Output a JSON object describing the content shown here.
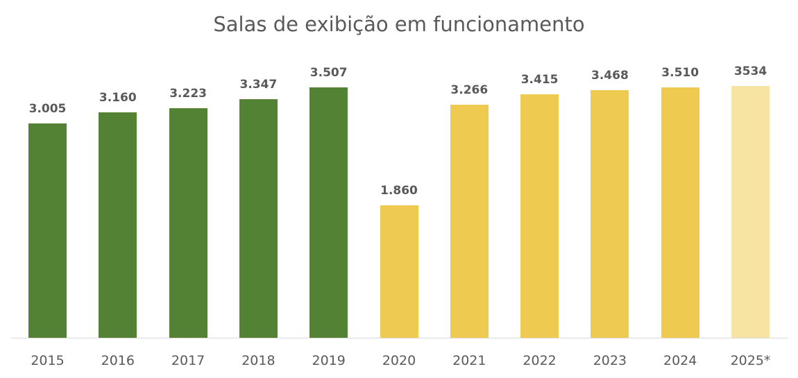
{
  "chart_data": {
    "type": "bar",
    "title": "Salas de exibição em funcionamento",
    "xlabel": "",
    "ylabel": "",
    "grid": false,
    "legend": null,
    "categories": [
      "2015",
      "2016",
      "2017",
      "2018",
      "2019",
      "2020",
      "2021",
      "2022",
      "2023",
      "2024",
      "2025*"
    ],
    "values": [
      3005,
      3160,
      3223,
      3347,
      3507,
      1860,
      3266,
      3415,
      3468,
      3510,
      3534
    ],
    "value_labels": [
      "3.005",
      "3.160",
      "3.223",
      "3.347",
      "3.507",
      "1.860",
      "3.266",
      "3.415",
      "3.468",
      "3.510",
      "3534"
    ],
    "colors": [
      "#548235",
      "#548235",
      "#548235",
      "#548235",
      "#548235",
      "#eecb50",
      "#eecb50",
      "#eecb50",
      "#eecb50",
      "#eecb50",
      "#f7e4a3"
    ],
    "ylim": [
      0,
      3600
    ]
  }
}
